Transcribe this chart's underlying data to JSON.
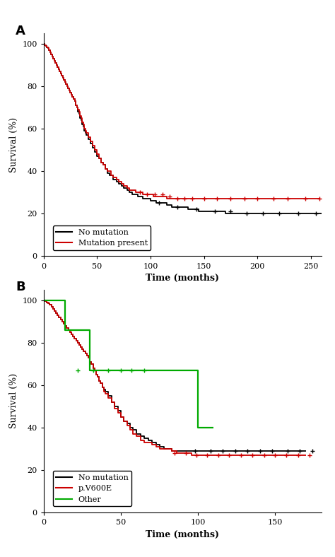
{
  "panel_A": {
    "title_label": "A",
    "xlabel": "Time (months)",
    "ylabel": "Survival (%)",
    "xlim": [
      0,
      260
    ],
    "ylim": [
      0,
      105
    ],
    "xticks": [
      0,
      50,
      100,
      150,
      200,
      250
    ],
    "yticks": [
      0,
      20,
      40,
      60,
      80,
      100
    ],
    "legend_labels": [
      "No mutation",
      "Mutation present"
    ],
    "legend_colors": [
      "#000000",
      "#cc0000"
    ],
    "no_mutation": {
      "color": "#000000",
      "times": [
        0,
        1,
        2,
        3,
        4,
        5,
        6,
        7,
        8,
        9,
        10,
        11,
        12,
        13,
        14,
        15,
        16,
        17,
        18,
        19,
        20,
        21,
        22,
        23,
        24,
        25,
        26,
        27,
        28,
        29,
        30,
        31,
        32,
        33,
        34,
        35,
        36,
        37,
        38,
        39,
        40,
        42,
        44,
        46,
        48,
        50,
        52,
        54,
        56,
        58,
        60,
        62,
        65,
        68,
        70,
        73,
        75,
        78,
        80,
        83,
        85,
        88,
        90,
        93,
        95,
        100,
        105,
        110,
        115,
        120,
        125,
        130,
        135,
        140,
        145,
        150,
        160,
        170,
        180,
        195,
        210,
        240,
        260
      ],
      "surv": [
        100,
        99.5,
        99,
        98.5,
        98,
        97,
        96,
        95,
        94,
        93,
        92,
        91,
        90,
        89,
        88,
        87,
        86,
        85,
        84,
        83,
        82,
        81,
        80,
        79,
        78,
        77,
        76,
        75,
        74,
        73,
        71,
        70,
        68,
        67,
        65,
        64,
        62,
        61,
        59,
        58,
        57,
        55,
        53,
        51,
        49,
        47,
        46,
        44,
        43,
        41,
        39,
        38,
        36,
        35,
        34,
        33,
        32,
        31,
        30,
        29,
        29,
        28,
        28,
        27,
        27,
        26,
        25,
        25,
        24,
        23,
        23,
        23,
        22,
        22,
        21,
        21,
        21,
        20,
        20,
        20,
        20,
        20,
        20
      ],
      "censor_times": [
        108,
        125,
        143,
        160,
        175,
        190,
        205,
        220,
        238,
        255
      ],
      "censor_surv": [
        25,
        23,
        22,
        21,
        21,
        20,
        20,
        20,
        20,
        20
      ]
    },
    "mutation_present": {
      "color": "#cc0000",
      "times": [
        0,
        1,
        2,
        3,
        4,
        5,
        6,
        7,
        8,
        9,
        10,
        11,
        12,
        13,
        14,
        15,
        16,
        17,
        18,
        19,
        20,
        21,
        22,
        23,
        24,
        25,
        26,
        27,
        28,
        29,
        30,
        31,
        32,
        33,
        34,
        35,
        36,
        37,
        38,
        39,
        40,
        42,
        44,
        46,
        48,
        50,
        52,
        54,
        56,
        58,
        60,
        63,
        65,
        68,
        70,
        73,
        75,
        78,
        80,
        83,
        86,
        90,
        93,
        96,
        100,
        103,
        107,
        110,
        115,
        120,
        125,
        130,
        135,
        140,
        150,
        160,
        170,
        185,
        200,
        220,
        240,
        258
      ],
      "surv": [
        100,
        99.5,
        99,
        98.5,
        98,
        97,
        96,
        95,
        94,
        93,
        92,
        91,
        90,
        89,
        88,
        87,
        86,
        85,
        84,
        83,
        82,
        81,
        80,
        79,
        78,
        77,
        76,
        75,
        74,
        73,
        71,
        70,
        69,
        68,
        66,
        65,
        63,
        62,
        60,
        59,
        58,
        56,
        54,
        52,
        50,
        48,
        46,
        44,
        43,
        41,
        40,
        38,
        37,
        36,
        35,
        34,
        33,
        32,
        31,
        31,
        30,
        30,
        29,
        29,
        29,
        28,
        28,
        28,
        27,
        27,
        27,
        27,
        27,
        27,
        27,
        27,
        27,
        27,
        27,
        27,
        27,
        27
      ],
      "censor_times": [
        90,
        97,
        104,
        111,
        118,
        125,
        132,
        139,
        150,
        162,
        175,
        188,
        200,
        215,
        228,
        245,
        258
      ],
      "censor_surv": [
        30,
        29,
        29,
        29,
        28,
        27,
        27,
        27,
        27,
        27,
        27,
        27,
        27,
        27,
        27,
        27,
        27
      ]
    }
  },
  "panel_B": {
    "title_label": "B",
    "xlabel": "Time (months)",
    "ylabel": "Survival (%)",
    "xlim": [
      0,
      180
    ],
    "ylim": [
      0,
      105
    ],
    "xticks": [
      0,
      50,
      100,
      150
    ],
    "yticks": [
      0,
      20,
      40,
      60,
      80,
      100
    ],
    "legend_labels": [
      "No mutation",
      "p.V600E",
      "Other"
    ],
    "legend_colors": [
      "#000000",
      "#cc0000",
      "#00aa00"
    ],
    "no_mutation": {
      "color": "#000000",
      "times": [
        0,
        1,
        2,
        3,
        4,
        5,
        6,
        7,
        8,
        9,
        10,
        11,
        12,
        13,
        14,
        15,
        16,
        17,
        18,
        19,
        20,
        21,
        22,
        23,
        24,
        25,
        26,
        27,
        28,
        29,
        30,
        31,
        32,
        33,
        34,
        35,
        36,
        37,
        38,
        39,
        40,
        42,
        44,
        46,
        48,
        50,
        52,
        54,
        56,
        58,
        60,
        63,
        65,
        68,
        70,
        73,
        75,
        78,
        80,
        83,
        86,
        90,
        93,
        95,
        100,
        105,
        110,
        115,
        120,
        130,
        140,
        150,
        160,
        170
      ],
      "surv": [
        100,
        99.5,
        99,
        98.5,
        98,
        97,
        96,
        95,
        94,
        93,
        92,
        91,
        90,
        89,
        88,
        87,
        86,
        85,
        84,
        83,
        82,
        81,
        80,
        79,
        78,
        77,
        76,
        75,
        74,
        73,
        71,
        70,
        68,
        67,
        65,
        64,
        62,
        61,
        59,
        58,
        57,
        55,
        52,
        50,
        48,
        45,
        43,
        42,
        40,
        39,
        37,
        36,
        35,
        34,
        33,
        32,
        31,
        30,
        30,
        29,
        29,
        29,
        29,
        29,
        29,
        29,
        29,
        29,
        29,
        29,
        29,
        29,
        29,
        29
      ],
      "censor_times": [
        98,
        108,
        116,
        124,
        132,
        140,
        148,
        158,
        166,
        174
      ],
      "censor_surv": [
        29,
        29,
        29,
        29,
        29,
        29,
        29,
        29,
        29,
        29
      ]
    },
    "pV600E": {
      "color": "#cc0000",
      "times": [
        0,
        1,
        2,
        3,
        4,
        5,
        6,
        7,
        8,
        9,
        10,
        11,
        12,
        13,
        14,
        15,
        16,
        17,
        18,
        19,
        20,
        21,
        22,
        23,
        24,
        25,
        26,
        27,
        28,
        29,
        30,
        31,
        32,
        33,
        34,
        35,
        36,
        37,
        38,
        39,
        40,
        42,
        44,
        46,
        48,
        50,
        52,
        54,
        56,
        58,
        60,
        63,
        65,
        68,
        70,
        73,
        75,
        78,
        80,
        83,
        86,
        90,
        93,
        96,
        100,
        105,
        110,
        115,
        120,
        130,
        140,
        150,
        160,
        170
      ],
      "surv": [
        100,
        99.5,
        99,
        98.5,
        98,
        97,
        96,
        95,
        94,
        93,
        92,
        91,
        90,
        89,
        88,
        87,
        86,
        85,
        84,
        83,
        82,
        81,
        80,
        79,
        78,
        77,
        76,
        75,
        74,
        73,
        71,
        70,
        68,
        67,
        65,
        64,
        62,
        61,
        59,
        57,
        56,
        54,
        52,
        49,
        47,
        45,
        43,
        41,
        39,
        37,
        36,
        34,
        33,
        33,
        32,
        31,
        30,
        30,
        30,
        29,
        28,
        28,
        28,
        27,
        27,
        27,
        27,
        27,
        27,
        27,
        27,
        27,
        27,
        27
      ],
      "censor_times": [
        85,
        92,
        99,
        106,
        113,
        120,
        128,
        135,
        143,
        150,
        157,
        165,
        172
      ],
      "censor_surv": [
        28,
        28,
        27,
        27,
        27,
        27,
        27,
        27,
        27,
        27,
        27,
        27,
        27
      ]
    },
    "other": {
      "color": "#00aa00",
      "times": [
        0,
        5,
        10,
        14,
        20,
        30,
        32,
        60,
        63,
        80,
        88,
        100,
        110
      ],
      "surv": [
        100,
        100,
        100,
        86,
        86,
        67,
        67,
        67,
        67,
        67,
        67,
        40,
        40
      ],
      "censor_times": [
        22,
        32,
        42,
        50,
        57,
        65
      ],
      "censor_surv": [
        67,
        67,
        67,
        67,
        67,
        67
      ]
    }
  }
}
